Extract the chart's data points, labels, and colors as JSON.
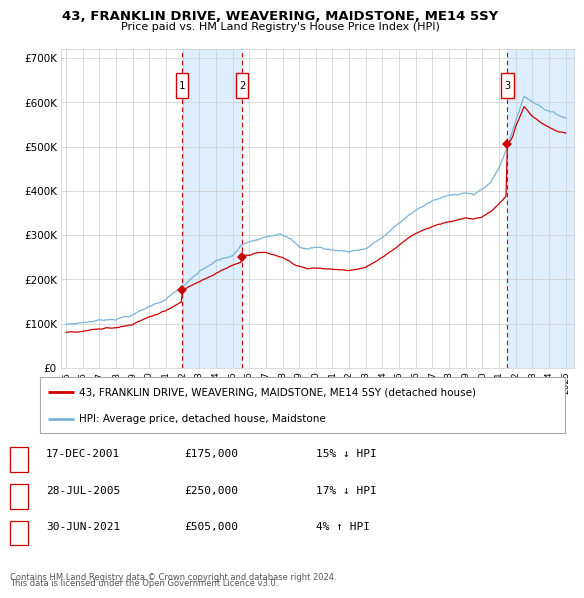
{
  "title": "43, FRANKLIN DRIVE, WEAVERING, MAIDSTONE, ME14 5SY",
  "subtitle": "Price paid vs. HM Land Registry's House Price Index (HPI)",
  "legend_line1": "43, FRANKLIN DRIVE, WEAVERING, MAIDSTONE, ME14 5SY (detached house)",
  "legend_line2": "HPI: Average price, detached house, Maidstone",
  "footnote1": "Contains HM Land Registry data © Crown copyright and database right 2024.",
  "footnote2": "This data is licensed under the Open Government Licence v3.0.",
  "transactions": [
    {
      "num": 1,
      "date": "17-DEC-2001",
      "price": 175000,
      "pct": "15%",
      "dir": "↓",
      "x": 2001.96
    },
    {
      "num": 2,
      "date": "28-JUL-2005",
      "price": 250000,
      "pct": "17%",
      "dir": "↓",
      "x": 2005.57
    },
    {
      "num": 3,
      "date": "30-JUN-2021",
      "price": 505000,
      "pct": "4%",
      "dir": "↑",
      "x": 2021.5
    }
  ],
  "hpi_color": "#7ab4d8",
  "price_color": "#cc0000",
  "shaded_color": "#ddeeff",
  "vline_color": "#cc0000",
  "background_color": "#ffffff",
  "grid_color": "#cccccc",
  "ylim": [
    0,
    720000
  ],
  "yticks": [
    0,
    100000,
    200000,
    300000,
    400000,
    500000,
    600000,
    700000
  ],
  "xlim": [
    1994.7,
    2025.5
  ],
  "xticks": [
    1995,
    1996,
    1997,
    1998,
    1999,
    2000,
    2001,
    2002,
    2003,
    2004,
    2005,
    2006,
    2007,
    2008,
    2009,
    2010,
    2011,
    2012,
    2013,
    2014,
    2015,
    2016,
    2017,
    2018,
    2019,
    2020,
    2021,
    2022,
    2023,
    2024,
    2025
  ]
}
